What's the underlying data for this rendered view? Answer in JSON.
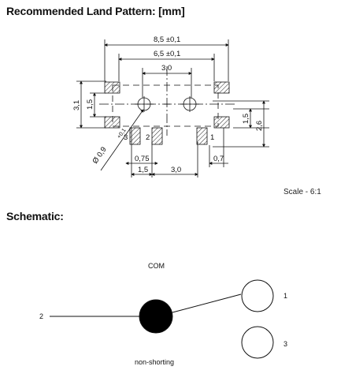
{
  "headings": {
    "land_pattern": "Recommended Land Pattern: [mm]",
    "schematic": "Schematic:"
  },
  "scale": "Scale - 6:1",
  "dimensions": {
    "overall_width": "8,5 ±0,1",
    "inner_width": "6,5 ±0,1",
    "hole_pitch": "3,0",
    "height_total": "3,1",
    "height_pad": "1,5",
    "right_pad": "1,5",
    "right_total": "2,6",
    "hole_diameter": "Ø 0,9",
    "hole_tolerance": "+0,1",
    "pad_width": "0,75",
    "pad_spacing": "1,5",
    "pad_pitch": "3,0",
    "right_gap": "0,7"
  },
  "pins": {
    "pin1": "1",
    "pin2": "2",
    "pin3": "3"
  },
  "schematic": {
    "com": "COM",
    "pin1": "1",
    "pin2": "2",
    "pin3": "3",
    "note": "non-shorting"
  }
}
